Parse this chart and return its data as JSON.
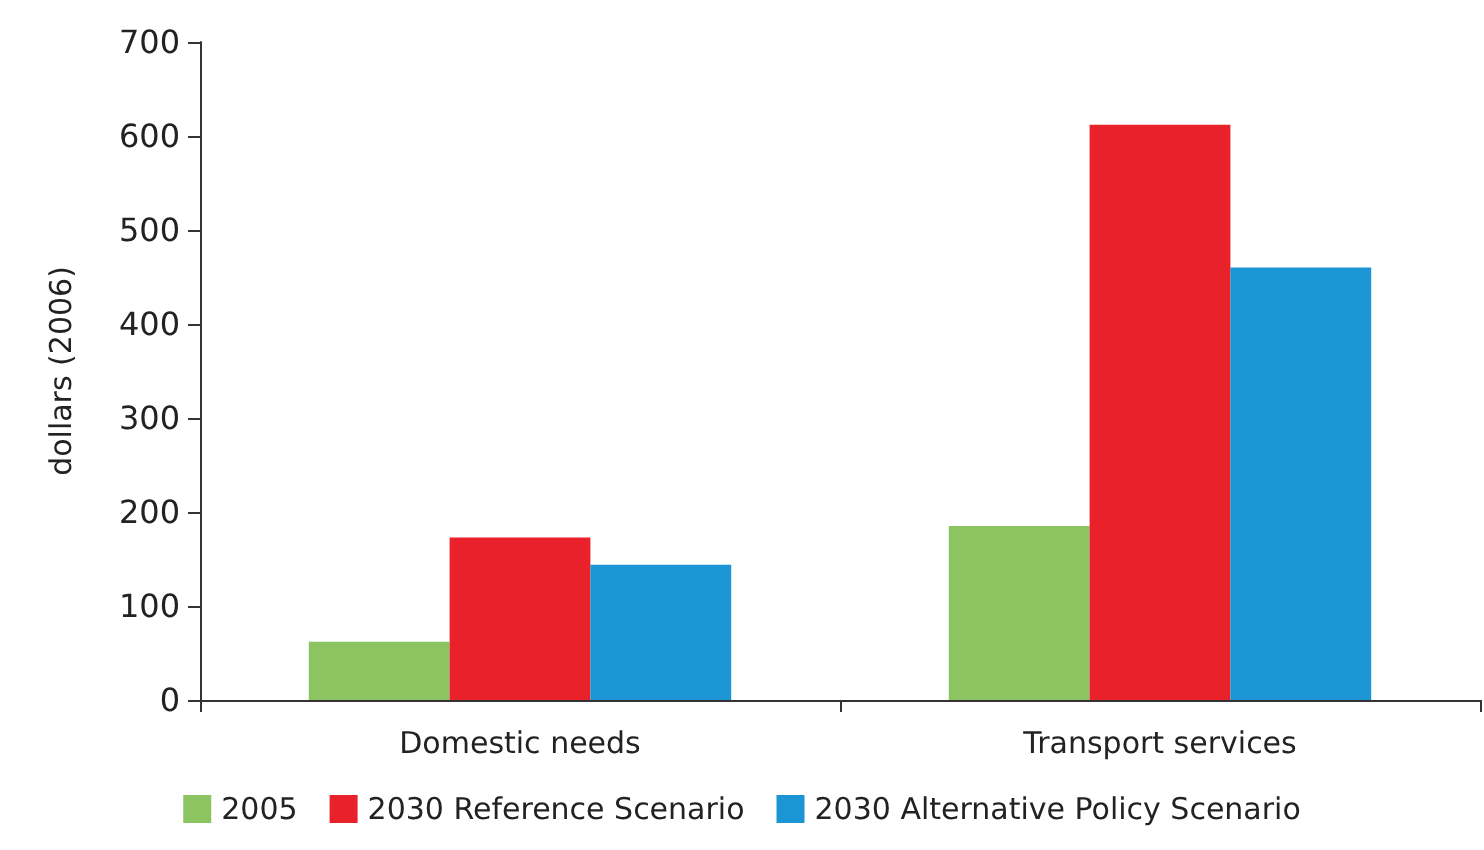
{
  "chart_data": {
    "type": "bar",
    "ylabel": "dollars (2006)",
    "categories": [
      "Domestic needs",
      "Transport services"
    ],
    "series": [
      {
        "name": "2005",
        "color": "#8dc462",
        "values": [
          62,
          185
        ]
      },
      {
        "name": "2030 Reference Scenario",
        "color": "#e8212a",
        "values": [
          173,
          612
        ]
      },
      {
        "name": "2030 Alternative Policy Scenario",
        "color": "#1b95d3",
        "values": [
          144,
          460
        ]
      }
    ],
    "ylim": [
      0,
      700
    ],
    "yticks": [
      0,
      100,
      200,
      300,
      400,
      500,
      600,
      700
    ],
    "grid": false,
    "legend": "bottom"
  }
}
